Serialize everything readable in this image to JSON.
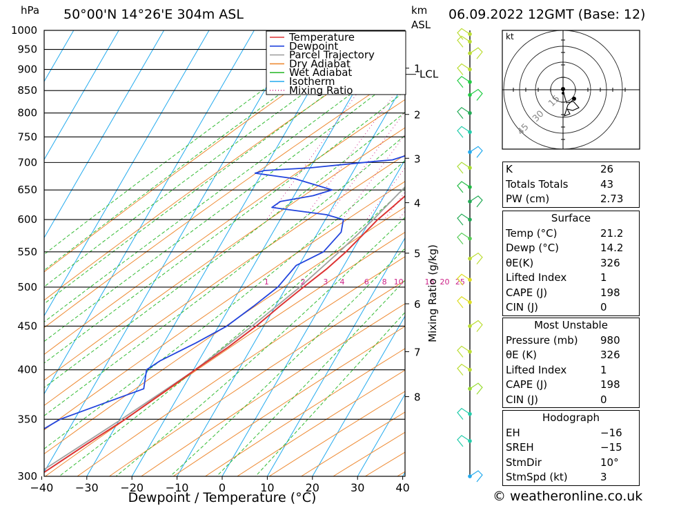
{
  "header": {
    "location": "50°00'N  14°26'E  304m  ASL",
    "datetime": "06.09.2022  12GMT  (Base: 12)",
    "pressure_unit": "hPa",
    "height_unit_km": "km",
    "height_unit_asl": "ASL"
  },
  "footer": {
    "site": "© weatheronline.co.uk"
  },
  "chart_data": {
    "type": "line",
    "subtype": "skew-T log-P",
    "xlabel": "Dewpoint / Temperature (°C)",
    "ylabel": "hPa",
    "mixing_ratio_axis_label": "Mixing Ratio (g/kg)",
    "xlim": [
      -40,
      40
    ],
    "ylim": [
      1000,
      300
    ],
    "x_ticks": [
      "−40",
      "−30",
      "−20",
      "−10",
      "0",
      "10",
      "20",
      "30",
      "40"
    ],
    "x_tick_values": [
      -40,
      -30,
      -20,
      -10,
      0,
      10,
      20,
      30,
      40
    ],
    "pressure_levels": [
      300,
      350,
      400,
      450,
      500,
      550,
      600,
      650,
      700,
      750,
      800,
      850,
      900,
      950,
      1000
    ],
    "km_ticks": [
      {
        "label": "8",
        "p": 372
      },
      {
        "label": "7",
        "p": 420
      },
      {
        "label": "6",
        "p": 478
      },
      {
        "label": "5",
        "p": 548
      },
      {
        "label": "4",
        "p": 628
      },
      {
        "label": "3",
        "p": 708
      },
      {
        "label": "2",
        "p": 797
      },
      {
        "label": "1",
        "p": 903
      }
    ],
    "lcl": {
      "label": "LCL",
      "p": 888
    },
    "mixing_ratio_labels": [
      "1",
      "2",
      "3",
      "4",
      "6",
      "8",
      "10",
      "16",
      "20",
      "25"
    ],
    "mixing_ratio_values": [
      1,
      2,
      3,
      4,
      6,
      8,
      10,
      16,
      20,
      25
    ],
    "legend": [
      "Temperature",
      "Dewpoint",
      "Parcel Trajectory",
      "Dry Adiabat",
      "Wet Adiabat",
      "Isotherm",
      "Mixing Ratio"
    ],
    "legend_position": "top-right",
    "colors": {
      "temperature": "#dd3333",
      "dewpoint": "#2244dd",
      "parcel": "#a0a0a0",
      "dry_adiabat": "#ee8a33",
      "wet_adiabat": "#33bb33",
      "isotherm": "#22aaee",
      "mixing_ratio": "#cc2288"
    },
    "series": [
      {
        "name": "Temperature",
        "points": [
          [
            980,
            21.2
          ],
          [
            950,
            18.2
          ],
          [
            925,
            16.4
          ],
          [
            900,
            14.8
          ],
          [
            880,
            13.6
          ],
          [
            850,
            12.4
          ],
          [
            820,
            11.2
          ],
          [
            800,
            9.6
          ],
          [
            780,
            8.2
          ],
          [
            760,
            6.6
          ],
          [
            750,
            5.9
          ],
          [
            730,
            4.4
          ],
          [
            710,
            3.6
          ],
          [
            700,
            3.6
          ],
          [
            690,
            4.4
          ],
          [
            670,
            7.2
          ],
          [
            650,
            5.4
          ],
          [
            620,
            3.2
          ],
          [
            600,
            1.6
          ],
          [
            575,
            0.2
          ],
          [
            550,
            -1.3
          ],
          [
            525,
            -3.4
          ],
          [
            500,
            -6.2
          ],
          [
            475,
            -9.0
          ],
          [
            450,
            -11.7
          ],
          [
            425,
            -15.2
          ],
          [
            400,
            -19.6
          ],
          [
            375,
            -24.0
          ],
          [
            350,
            -28.8
          ],
          [
            325,
            -34.7
          ],
          [
            300,
            -40.8
          ]
        ]
      },
      {
        "name": "Dewpoint",
        "points": [
          [
            980,
            14.2
          ],
          [
            950,
            13.9
          ],
          [
            925,
            13.2
          ],
          [
            900,
            11.9
          ],
          [
            880,
            10.6
          ],
          [
            850,
            8.9
          ],
          [
            830,
            7.1
          ],
          [
            815,
            4.6
          ],
          [
            800,
            2.5
          ],
          [
            780,
            2.8
          ],
          [
            750,
            2.2
          ],
          [
            730,
            1.4
          ],
          [
            715,
            0.2
          ],
          [
            705,
            -2.8
          ],
          [
            702,
            -6.5
          ],
          [
            690,
            -20.0
          ],
          [
            685,
            -29.8
          ],
          [
            680,
            -31.5
          ],
          [
            670,
            -22.0
          ],
          [
            650,
            -12.3
          ],
          [
            640,
            -15.8
          ],
          [
            630,
            -22.3
          ],
          [
            620,
            -23.4
          ],
          [
            608,
            -10.4
          ],
          [
            600,
            -6.0
          ],
          [
            580,
            -4.9
          ],
          [
            550,
            -6.3
          ],
          [
            530,
            -10.6
          ],
          [
            500,
            -11.9
          ],
          [
            475,
            -14.8
          ],
          [
            450,
            -18.2
          ],
          [
            430,
            -22.9
          ],
          [
            410,
            -28.5
          ],
          [
            400,
            -30.4
          ],
          [
            380,
            -28.6
          ],
          [
            350,
            -43.2
          ],
          [
            325,
            -50.0
          ],
          [
            300,
            -56.5
          ]
        ]
      },
      {
        "name": "Parcel Trajectory",
        "points": [
          [
            980,
            21.2
          ],
          [
            950,
            18.4
          ],
          [
            925,
            16.4
          ],
          [
            900,
            14.8
          ],
          [
            888,
            14.0
          ],
          [
            850,
            12.6
          ],
          [
            800,
            10.6
          ],
          [
            750,
            8.4
          ],
          [
            700,
            5.8
          ],
          [
            650,
            3.2
          ],
          [
            600,
            0.6
          ],
          [
            550,
            -2.8
          ],
          [
            500,
            -7.0
          ],
          [
            450,
            -12.6
          ],
          [
            400,
            -19.6
          ],
          [
            350,
            -29.6
          ],
          [
            300,
            -41.8
          ]
        ]
      }
    ],
    "wind_profile": {
      "levels_hpa": [
        300,
        330,
        355,
        380,
        400,
        420,
        450,
        480,
        510,
        540,
        570,
        600,
        630,
        655,
        690,
        720,
        760,
        800,
        840,
        870,
        900,
        940,
        970,
        990
      ],
      "colors": [
        "#22aaee",
        "#22ccaa",
        "#22ccaa",
        "#99dd33",
        "#bbdd33",
        "#bbdd33",
        "#bbdd33",
        "#dddd22",
        "#dddd22",
        "#bbdd33",
        "#55cc55",
        "#22aa55",
        "#22aa55",
        "#22bb44",
        "#aadd33",
        "#22aaee",
        "#22ccaa",
        "#22aa55",
        "#22cc44",
        "#22cc44",
        "#bbdd33",
        "#bbdd33",
        "#bbdd33",
        "#bbdd33"
      ]
    },
    "hodograph": {
      "unit": "kt",
      "rings": [
        "15",
        "30",
        "45"
      ]
    }
  },
  "indices": {
    "block1": [
      {
        "label": "K",
        "value": "26"
      },
      {
        "label": "Totals Totals",
        "value": "43"
      },
      {
        "label": "PW (cm)",
        "value": "2.73"
      }
    ],
    "surface_title": "Surface",
    "surface": [
      {
        "label": "Temp (°C)",
        "value": "21.2"
      },
      {
        "label": "Dewp (°C)",
        "value": "14.2"
      },
      {
        "label": "θE(K)",
        "value": "326"
      },
      {
        "label": "Lifted Index",
        "value": "1"
      },
      {
        "label": "CAPE (J)",
        "value": "198"
      },
      {
        "label": "CIN (J)",
        "value": "0"
      }
    ],
    "mu_title": "Most Unstable",
    "most_unstable": [
      {
        "label": "Pressure (mb)",
        "value": "980"
      },
      {
        "label": "θE (K)",
        "value": "326"
      },
      {
        "label": "Lifted Index",
        "value": "1"
      },
      {
        "label": "CAPE (J)",
        "value": "198"
      },
      {
        "label": "CIN (J)",
        "value": "0"
      }
    ],
    "hodo_title": "Hodograph",
    "hodograph": [
      {
        "label": "EH",
        "value": "−16"
      },
      {
        "label": "SREH",
        "value": "−15"
      },
      {
        "label": "StmDir",
        "value": "10°"
      },
      {
        "label": "StmSpd (kt)",
        "value": "3"
      }
    ]
  }
}
